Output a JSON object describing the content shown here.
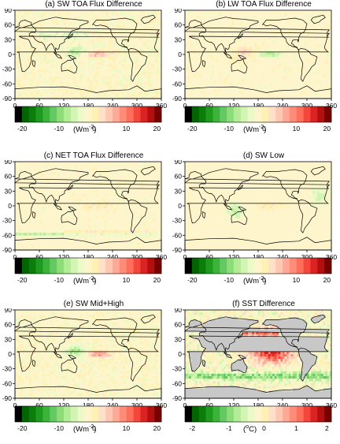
{
  "panels": [
    {
      "title": "(a) SW TOA Flux Difference",
      "type": "sw"
    },
    {
      "title": "(b) LW TOA Flux Difference",
      "type": "lw"
    },
    {
      "title": "(c) NET TOA Flux Difference",
      "type": "net"
    },
    {
      "title": "(d) SW Low",
      "type": "low"
    },
    {
      "title": "(e) SW Mid+High",
      "type": "mid"
    },
    {
      "title": "(f) SST Difference",
      "type": "sst"
    }
  ],
  "lat_ticks": [
    "90",
    "60",
    "30",
    "0",
    "-30",
    "-60",
    "-90"
  ],
  "lon_ticks": [
    "0",
    "60",
    "120",
    "180",
    "240",
    "300",
    "360"
  ],
  "colorbar": {
    "flux": {
      "ticks": [
        "-20",
        "-10",
        "0",
        "10",
        "20"
      ],
      "unit": "(Wm",
      "unit_sup": "-2",
      "unit_end": ")"
    },
    "sst": {
      "ticks": [
        "-2",
        "-1",
        "0",
        "1",
        "2"
      ],
      "unit": "(",
      "unit_sup": "o",
      "unit_end": "C)"
    }
  },
  "colors": [
    "#000000",
    "#006400",
    "#0a7d0a",
    "#1e9a1e",
    "#3cb43c",
    "#64c864",
    "#8cdc78",
    "#b4eb96",
    "#d2f5b4",
    "#ebfac8",
    "#fff5cc",
    "#fff0b4",
    "#ffe0c8",
    "#ffc8b4",
    "#ffaa96",
    "#ff8c78",
    "#ff6e5a",
    "#f5463c",
    "#dc2323",
    "#b40f0f",
    "#780000"
  ]
}
